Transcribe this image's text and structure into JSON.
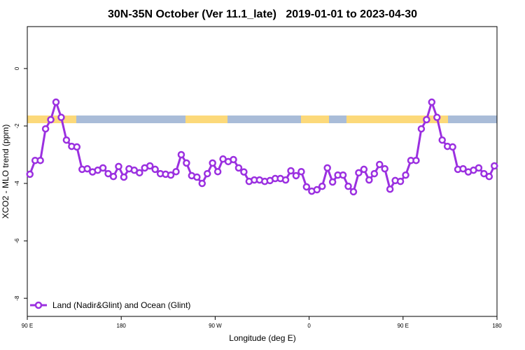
{
  "chart_data": {
    "type": "line",
    "title": "30N-35N October (Ver 11.1_late)   2019-01-01 to 2023-04-30",
    "xlabel": "Longitude (deg E)",
    "ylabel": "XCO2 - MLO trend (ppm)",
    "xlim": [
      90,
      540
    ],
    "ylim": [
      -8.63,
      1.46
    ],
    "xticks": [
      {
        "value": 90,
        "label": "90 E"
      },
      180,
      {
        "value": 270,
        "label": "90 W"
      },
      {
        "value": 360,
        "label": "0"
      },
      {
        "value": 450,
        "label": "90 E"
      },
      {
        "value": 540,
        "label": "180"
      }
    ],
    "yticks": [
      0,
      -2,
      -4,
      -6,
      -8
    ],
    "legend": "bottomleft",
    "x": [
      92.5,
      97.5,
      102.5,
      107.5,
      112.5,
      117.5,
      122.5,
      127.5,
      132.5,
      137.5,
      142.5,
      147.5,
      152.5,
      157.5,
      162.5,
      167.5,
      172.5,
      177.5,
      182.5,
      187.5,
      192.5,
      197.5,
      202.5,
      207.5,
      212.5,
      217.5,
      222.5,
      227.5,
      232.5,
      237.5,
      242.5,
      247.5,
      252.5,
      257.5,
      262.5,
      267.5,
      272.5,
      277.5,
      282.5,
      287.5,
      292.5,
      297.5,
      302.5,
      307.5,
      312.5,
      317.5,
      322.5,
      327.5,
      332.5,
      337.5,
      342.5,
      347.5,
      352.5,
      357.5,
      362.5,
      367.5,
      372.5,
      377.5,
      382.5,
      387.5,
      392.5,
      397.5,
      402.5,
      407.5,
      412.5,
      417.5,
      422.5,
      427.5,
      432.5,
      437.5,
      442.5,
      447.5,
      452.5,
      457.5,
      462.5,
      467.5,
      472.5,
      477.5,
      482.5,
      487.5,
      492.5,
      497.5,
      502.5,
      507.5,
      512.5,
      517.5,
      522.5,
      527.5,
      532.5,
      537.5
    ],
    "series": [
      {
        "name": "Land (Nadir&Glint) and Ocean (Glint)",
        "color": "#9b30e0",
        "values": [
          -3.68,
          -3.2,
          -3.2,
          -2.1,
          -1.78,
          -1.17,
          -1.7,
          -2.49,
          -2.71,
          -2.73,
          -3.51,
          -3.49,
          -3.6,
          -3.54,
          -3.46,
          -3.66,
          -3.76,
          -3.41,
          -3.78,
          -3.49,
          -3.54,
          -3.63,
          -3.46,
          -3.39,
          -3.51,
          -3.66,
          -3.68,
          -3.71,
          -3.59,
          -3.0,
          -3.29,
          -3.73,
          -3.78,
          -4.0,
          -3.66,
          -3.29,
          -3.59,
          -3.15,
          -3.24,
          -3.17,
          -3.46,
          -3.6,
          -3.93,
          -3.88,
          -3.88,
          -3.93,
          -3.9,
          -3.83,
          -3.83,
          -3.88,
          -3.56,
          -3.73,
          -3.59,
          -4.12,
          -4.27,
          -4.22,
          -4.1,
          -3.46,
          -3.95,
          -3.71,
          -3.71,
          -4.1,
          -4.29,
          -3.63,
          -3.51,
          -3.88,
          -3.66,
          -3.34,
          -3.49,
          -4.2,
          -3.9,
          -3.93,
          -3.71,
          -3.2,
          -3.2,
          -2.1,
          -1.78,
          -1.17,
          -1.7,
          -2.49,
          -2.71,
          -2.73,
          -3.51,
          -3.49,
          -3.6,
          -3.54,
          -3.46,
          -3.66,
          -3.76,
          -3.39
        ]
      }
    ]
  }
}
